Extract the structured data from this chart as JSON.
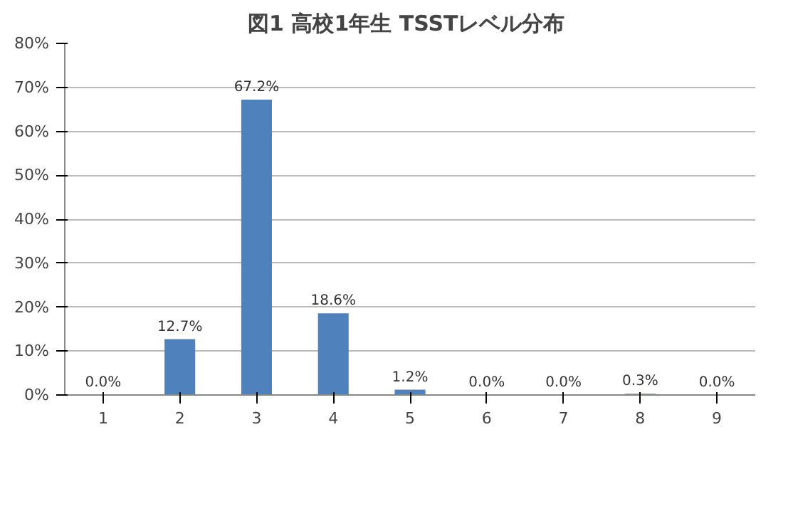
{
  "chart_data": {
    "type": "bar",
    "title": "図1  高校1年生 TSSTレベル分布",
    "categories": [
      "1",
      "2",
      "3",
      "4",
      "5",
      "6",
      "7",
      "8",
      "9"
    ],
    "values": [
      0.0,
      12.7,
      67.2,
      18.6,
      1.2,
      0.0,
      0.0,
      0.3,
      0.0
    ],
    "value_labels": [
      "0.0%",
      "12.7%",
      "67.2%",
      "18.6%",
      "1.2%",
      "0.0%",
      "0.0%",
      "0.3%",
      "0.0%"
    ],
    "color": "#4f81bd",
    "ylim": [
      0,
      80
    ],
    "yticks": [
      {
        "value": 0,
        "label": "0%"
      },
      {
        "value": 10,
        "label": "10%"
      },
      {
        "value": 20,
        "label": "20%"
      },
      {
        "value": 30,
        "label": "30%"
      },
      {
        "value": 40,
        "label": "40%"
      },
      {
        "value": 50,
        "label": "50%"
      },
      {
        "value": 60,
        "label": "60%"
      },
      {
        "value": 70,
        "label": "70%"
      },
      {
        "value": 80,
        "label": "80%"
      }
    ],
    "grid": "y"
  }
}
